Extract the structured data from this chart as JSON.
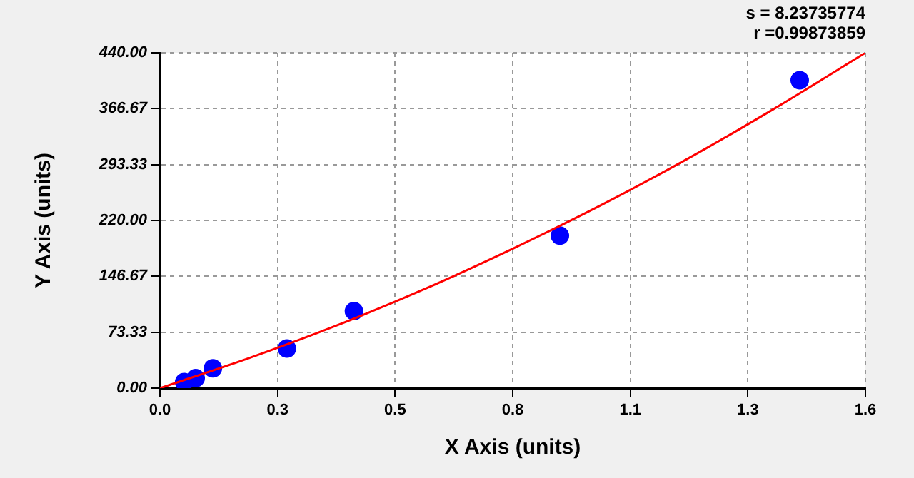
{
  "chart_data": {
    "type": "scatter",
    "xlabel": "X Axis (units)",
    "ylabel": "Y Axis (units)",
    "annotations": [
      "s = 8.23735774",
      "r =0.99873859"
    ],
    "series": [
      {
        "type": "scatter",
        "color": "#0000ff",
        "marker": "circle",
        "x": [
          0.055,
          0.081,
          0.12,
          0.288,
          0.44,
          0.907,
          1.451
        ],
        "values": [
          8,
          13,
          26,
          52,
          101,
          200,
          404
        ]
      },
      {
        "type": "line",
        "color": "#ff0000",
        "marker": "none",
        "line_style": "solid",
        "x": [
          0,
          0.2,
          0.4,
          0.6,
          0.8,
          1.0,
          1.2,
          1.4,
          1.6
        ],
        "values": [
          0,
          39,
          82,
          130,
          183,
          240,
          302,
          369,
          440
        ]
      }
    ],
    "xlim": [
      0,
      1.6
    ],
    "xticks": [
      {
        "value": 0,
        "label": "0.0"
      },
      {
        "value": 0.2667,
        "label": "0.3"
      },
      {
        "value": 0.5333,
        "label": "0.5"
      },
      {
        "value": 0.8,
        "label": "0.8"
      },
      {
        "value": 1.0667,
        "label": "1.1"
      },
      {
        "value": 1.3333,
        "label": "1.3"
      },
      {
        "value": 1.6,
        "label": "1.6"
      }
    ],
    "ylim": [
      0,
      440
    ],
    "yticks": [
      {
        "value": 0,
        "label": "0.00"
      },
      {
        "value": 73.33,
        "label": "73.33"
      },
      {
        "value": 146.67,
        "label": "146.67"
      },
      {
        "value": 220,
        "label": "220.00"
      },
      {
        "value": 293.33,
        "label": "293.33"
      },
      {
        "value": 366.67,
        "label": "366.67"
      },
      {
        "value": 440,
        "label": "440.00"
      }
    ],
    "grid": true,
    "legend": false
  }
}
